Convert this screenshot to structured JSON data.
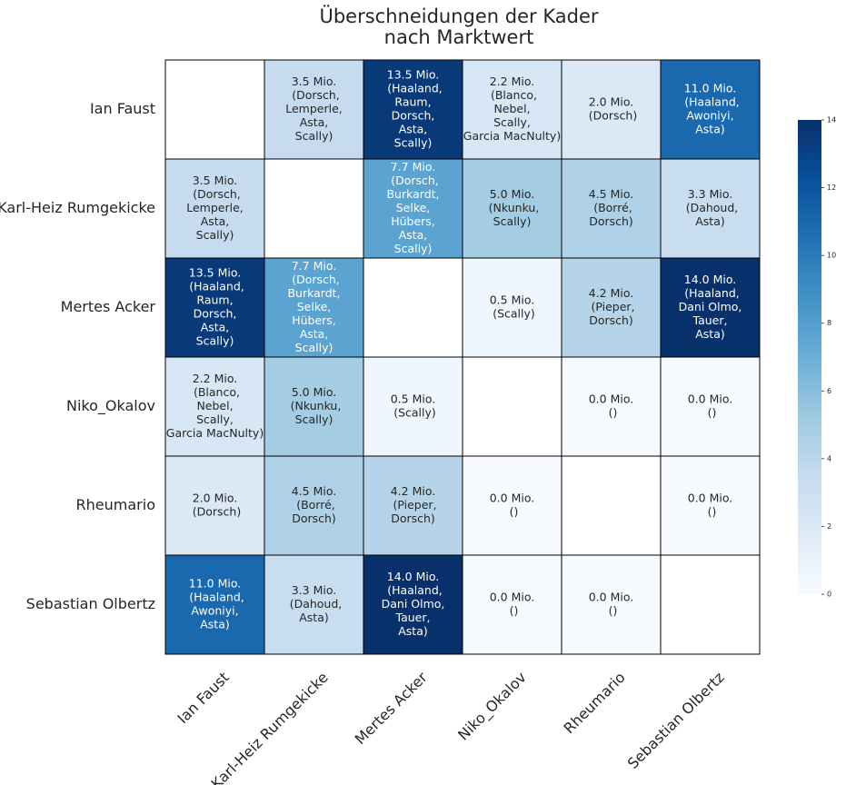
{
  "chart_data": {
    "type": "heatmap",
    "title": [
      "Überschneidungen der Kader",
      "nach Marktwert"
    ],
    "rows": [
      "Ian Faust",
      "Karl-Heiz Rumgekicke",
      "Mertes Acker",
      "Niko_Okalov",
      "Rheumario",
      "Sebastian Olbertz"
    ],
    "cols": [
      "Ian Faust",
      "Karl-Heiz Rumgekicke",
      "Mertes Acker",
      "Niko_Okalov",
      "Rheumario",
      "Sebastian Olbertz"
    ],
    "values": [
      [
        null,
        3.5,
        13.5,
        2.2,
        2.0,
        11.0
      ],
      [
        3.5,
        null,
        7.7,
        5.0,
        4.5,
        3.3
      ],
      [
        13.5,
        7.7,
        null,
        0.5,
        4.2,
        14.0
      ],
      [
        2.2,
        5.0,
        0.5,
        null,
        0.0,
        0.0
      ],
      [
        2.0,
        4.5,
        4.2,
        0.0,
        null,
        0.0
      ],
      [
        11.0,
        3.3,
        14.0,
        0.0,
        0.0,
        null
      ]
    ],
    "annotations": [
      [
        null,
        [
          "3.5 Mio.",
          " (Dorsch,",
          "Lemperle,",
          "Asta,",
          "Scally)"
        ],
        [
          "13.5 Mio.",
          " (Haaland,",
          "Raum,",
          "Dorsch,",
          "Asta,",
          "Scally)"
        ],
        [
          "2.2 Mio.",
          " (Blanco,",
          "Nebel,",
          "Scally,",
          "Garcia MacNulty)"
        ],
        [
          "2.0 Mio.",
          " (Dorsch)"
        ],
        [
          "11.0 Mio.",
          " (Haaland,",
          "Awoniyi,",
          "Asta)"
        ]
      ],
      [
        [
          "3.5 Mio.",
          " (Dorsch,",
          "Lemperle,",
          "Asta,",
          "Scally)"
        ],
        null,
        [
          "7.7 Mio.",
          " (Dorsch,",
          "Burkardt,",
          "Selke,",
          "Hübers,",
          "Asta,",
          "Scally)"
        ],
        [
          "5.0 Mio.",
          " (Nkunku,",
          "Scally)"
        ],
        [
          "4.5 Mio.",
          " (Borré,",
          "Dorsch)"
        ],
        [
          "3.3 Mio.",
          " (Dahoud,",
          "Asta)"
        ]
      ],
      [
        [
          "13.5 Mio.",
          " (Haaland,",
          "Raum,",
          "Dorsch,",
          "Asta,",
          "Scally)"
        ],
        [
          "7.7 Mio.",
          " (Dorsch,",
          "Burkardt,",
          "Selke,",
          "Hübers,",
          "Asta,",
          "Scally)"
        ],
        null,
        [
          "0.5 Mio.",
          " (Scally)"
        ],
        [
          "4.2 Mio.",
          " (Pieper,",
          "Dorsch)"
        ],
        [
          "14.0 Mio.",
          " (Haaland,",
          "Dani Olmo,",
          "Tauer,",
          "Asta)"
        ]
      ],
      [
        [
          "2.2 Mio.",
          " (Blanco,",
          "Nebel,",
          "Scally,",
          "Garcia MacNulty)"
        ],
        [
          "5.0 Mio.",
          " (Nkunku,",
          "Scally)"
        ],
        [
          "0.5 Mio.",
          " (Scally)"
        ],
        null,
        [
          "0.0 Mio.",
          " ()"
        ],
        [
          "0.0 Mio.",
          " ()"
        ]
      ],
      [
        [
          "2.0 Mio.",
          " (Dorsch)"
        ],
        [
          "4.5 Mio.",
          " (Borré,",
          "Dorsch)"
        ],
        [
          "4.2 Mio.",
          " (Pieper,",
          "Dorsch)"
        ],
        [
          "0.0 Mio.",
          " ()"
        ],
        null,
        [
          "0.0 Mio.",
          " ()"
        ]
      ],
      [
        [
          "11.0 Mio.",
          " (Haaland,",
          "Awoniyi,",
          "Asta)"
        ],
        [
          "3.3 Mio.",
          " (Dahoud,",
          "Asta)"
        ],
        [
          "14.0 Mio.",
          " (Haaland,",
          "Dani Olmo,",
          "Tauer,",
          "Asta)"
        ],
        [
          "0.0 Mio.",
          " ()"
        ],
        [
          "0.0 Mio.",
          " ()"
        ],
        null
      ]
    ],
    "colorbar": {
      "min": 0,
      "max": 14,
      "ticks": [
        "0",
        "2",
        "4",
        "6",
        "8",
        "10",
        "12",
        "14"
      ],
      "colormap": "Blues"
    },
    "grid": true
  },
  "colors": {
    "cell_border": "#000000",
    "text_dark": "#262626",
    "text_light": "#ffffff",
    "blues": [
      "#f7fbff",
      "#deebf7",
      "#c6dbef",
      "#9ecae1",
      "#6baed6",
      "#4292c6",
      "#2171b5",
      "#08519c",
      "#08306b"
    ]
  }
}
